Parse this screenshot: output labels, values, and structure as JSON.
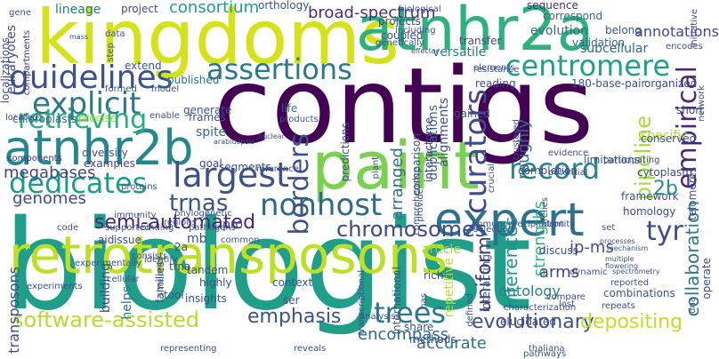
{
  "cloud": {
    "words": [
      {
        "text": "biologist",
        "color": "#1f9e89"
      },
      {
        "text": "contigs",
        "color": "#440154"
      },
      {
        "text": "kingdoms",
        "color": "#d5e21a"
      },
      {
        "text": "atnhr2a",
        "color": "#2db27d"
      },
      {
        "text": "paint",
        "color": "#7ad151"
      },
      {
        "text": "retrotransposons",
        "color": "#bddf26"
      },
      {
        "text": "expert",
        "color": "#2c728e"
      },
      {
        "text": "atnhr2b",
        "color": "#23888e"
      },
      {
        "text": "guidelines",
        "color": "#3b528b"
      },
      {
        "text": "assertions",
        "color": "#2a788e"
      },
      {
        "text": "centromere",
        "color": "#1fa187"
      },
      {
        "text": "explicit",
        "color": "#2a788e"
      },
      {
        "text": "largest",
        "color": "#3b528b"
      },
      {
        "text": "retrieving",
        "color": "#27ad81"
      },
      {
        "text": "curators",
        "color": "#3e4a89"
      },
      {
        "text": "empirical",
        "color": "#482878"
      },
      {
        "text": "record",
        "color": "#25838e"
      },
      {
        "text": "dedicates",
        "color": "#1e9b8a"
      },
      {
        "text": "nonhost",
        "color": "#31688e"
      },
      {
        "text": "borders",
        "color": "#3b528b"
      },
      {
        "text": "software-assisted",
        "color": "#b5de2b"
      },
      {
        "text": "semi-automated",
        "color": "#482777"
      },
      {
        "text": "trees",
        "color": "#2a788e"
      },
      {
        "text": "tyr",
        "color": "#3e4a89"
      },
      {
        "text": "trnas",
        "color": "#3b528b"
      },
      {
        "text": "megabases",
        "color": "#414487"
      },
      {
        "text": "genomes",
        "color": "#3e4a89"
      },
      {
        "text": "chromosomes",
        "color": "#404688"
      },
      {
        "text": "2b",
        "color": "#21918c"
      },
      {
        "text": "emphasis",
        "color": "#3b528b"
      },
      {
        "text": "evolutionary",
        "color": "#3b528b"
      },
      {
        "text": "inferences",
        "color": "#20928c"
      },
      {
        "text": "uniform",
        "color": "#443983"
      },
      {
        "text": "pipeline",
        "color": "#a5db36"
      },
      {
        "text": "collaboration",
        "color": "#2a788e"
      },
      {
        "text": "ip-ms",
        "color": "#3e4a89"
      },
      {
        "text": "roughly",
        "color": "#31688e"
      },
      {
        "text": "arranged",
        "color": "#2c728e"
      },
      {
        "text": "strengths",
        "color": "#2db27d"
      },
      {
        "text": "depositing",
        "color": "#bddf26"
      },
      {
        "text": "encompass",
        "color": "#31688e"
      },
      {
        "text": "accurate",
        "color": "#2c728e"
      },
      {
        "text": "arms",
        "color": "#414487"
      },
      {
        "text": "ontology",
        "color": "#26828e"
      },
      {
        "text": "consortium",
        "color": "#1f9e89"
      },
      {
        "text": "broad-spectrum",
        "color": "#46307e"
      },
      {
        "text": "annotations",
        "color": "#3e4a89"
      },
      {
        "text": "lineage",
        "color": "#2a788e"
      },
      {
        "text": "project",
        "color": "#3e4a89"
      },
      {
        "text": "orthology",
        "color": "#3b528b"
      },
      {
        "text": "sequence",
        "color": "#46307e"
      },
      {
        "text": "correspond",
        "color": "#31688e"
      },
      {
        "text": "eukaryotes",
        "color": "#3e4a89"
      },
      {
        "text": "localizations",
        "color": "#3b528b"
      },
      {
        "text": "compartments",
        "color": "#46307e"
      },
      {
        "text": "chloroplasts",
        "color": "#31688e"
      },
      {
        "text": "published",
        "color": "#2c728e"
      },
      {
        "text": "extend",
        "color": "#3b528b"
      },
      {
        "text": "frames",
        "color": "#3b528b"
      },
      {
        "text": "spite",
        "color": "#31688e"
      },
      {
        "text": "goal",
        "color": "#3e4a89"
      },
      {
        "text": "segments",
        "color": "#3b528b"
      },
      {
        "text": "examples",
        "color": "#414487"
      },
      {
        "text": "diversity",
        "color": "#3b528b"
      },
      {
        "text": "components",
        "color": "#46307e"
      },
      {
        "text": "precise",
        "color": "#8fd744"
      },
      {
        "text": "located",
        "color": "#3e4a89"
      },
      {
        "text": "generate",
        "color": "#3b528b"
      },
      {
        "text": "life",
        "color": "#2c728e"
      },
      {
        "text": "versatile",
        "color": "#2a788e"
      },
      {
        "text": "coupled",
        "color": "#3b528b"
      },
      {
        "text": "projects",
        "color": "#3e4a89"
      },
      {
        "text": "transfer",
        "color": "#3e4a89"
      },
      {
        "text": "evolution",
        "color": "#31688e"
      },
      {
        "text": "validation",
        "color": "#31688e"
      },
      {
        "text": "subcellular",
        "color": "#31688e"
      },
      {
        "text": "belong",
        "color": "#3b528b"
      },
      {
        "text": "reading",
        "color": "#3e4a89"
      },
      {
        "text": "180-base-pair",
        "color": "#3b528b"
      },
      {
        "text": "organized",
        "color": "#3e4a89"
      },
      {
        "text": "gained",
        "color": "#3b528b"
      },
      {
        "text": "alignments",
        "color": "#3b528b"
      },
      {
        "text": "duplications",
        "color": "#31688e"
      },
      {
        "text": "predictions",
        "color": "#3b528b"
      },
      {
        "text": "interactome",
        "color": "#414487"
      },
      {
        "text": "comparison",
        "color": "#3e4a89"
      },
      {
        "text": "specific",
        "color": "#b5de2b"
      },
      {
        "text": "completion",
        "color": "#3e4a89"
      },
      {
        "text": "limitations",
        "color": "#3b528b"
      },
      {
        "text": "cytoplasm",
        "color": "#3e4a89"
      },
      {
        "text": "telomeres",
        "color": "#3e4a89"
      },
      {
        "text": "conserved",
        "color": "#3b528b"
      },
      {
        "text": "short",
        "color": "#3e4a89"
      },
      {
        "text": "framework",
        "color": "#3b528b"
      },
      {
        "text": "homology",
        "color": "#3e4a89"
      },
      {
        "text": "repetitive",
        "color": "#b5de2b"
      },
      {
        "text": "article",
        "color": "#8fd744"
      },
      {
        "text": "rich",
        "color": "#3e4a89"
      },
      {
        "text": "discuss",
        "color": "#3b528b"
      },
      {
        "text": "operate",
        "color": "#3e4a89"
      },
      {
        "text": "transposons",
        "color": "#3e4a89"
      },
      {
        "text": "building",
        "color": "#3e4a89"
      },
      {
        "text": "aid",
        "color": "#3e4a89"
      },
      {
        "text": "issue",
        "color": "#3b528b"
      },
      {
        "text": "pro",
        "color": "#3e4a89"
      },
      {
        "text": "mb",
        "color": "#3b528b"
      },
      {
        "text": "helps",
        "color": "#2c728e"
      },
      {
        "text": "trna",
        "color": "#3e4a89"
      },
      {
        "text": "2a",
        "color": "#3b528b"
      },
      {
        "text": "tool",
        "color": "#3b528b"
      },
      {
        "text": "highly",
        "color": "#3b528b"
      },
      {
        "text": "tandem",
        "color": "#3b528b"
      },
      {
        "text": "insights",
        "color": "#3b528b"
      },
      {
        "text": "context",
        "color": "#3b528b"
      },
      {
        "text": "ser",
        "color": "#3b528b"
      },
      {
        "text": "international",
        "color": "#3b528b"
      },
      {
        "text": "share",
        "color": "#3b528b"
      },
      {
        "text": "methods",
        "color": "#3b528b"
      },
      {
        "text": "analysis",
        "color": "#3b528b"
      },
      {
        "text": "elucidated",
        "color": "#3e4a89"
      },
      {
        "text": "characterization",
        "color": "#3b528b"
      },
      {
        "text": "compare",
        "color": "#3e4a89"
      },
      {
        "text": "lost",
        "color": "#3b528b"
      },
      {
        "text": "combinations",
        "color": "#3b528b"
      },
      {
        "text": "repeats",
        "color": "#3e4a89"
      },
      {
        "text": "reported",
        "color": "#3b528b"
      },
      {
        "text": "dynamic",
        "color": "#3b528b"
      },
      {
        "text": "experimentally",
        "color": "#3b528b"
      },
      {
        "text": "families",
        "color": "#3b528b"
      },
      {
        "text": "code",
        "color": "#3b528b"
      },
      {
        "text": "supported",
        "color": "#3b528b"
      },
      {
        "text": "immunity",
        "color": "#3b528b"
      },
      {
        "text": "regions",
        "color": "#3b528b"
      },
      {
        "text": "phylogenetic",
        "color": "#3b528b"
      },
      {
        "text": "interacting",
        "color": "#3b528b"
      },
      {
        "text": "selection",
        "color": "#3e4a89"
      },
      {
        "text": "immunoprecipitation",
        "color": "#3b528b"
      },
      {
        "text": "identity",
        "color": "#3b528b"
      },
      {
        "text": "relies",
        "color": "#3e4a89"
      },
      {
        "text": "potential",
        "color": "#3b528b"
      },
      {
        "text": "participating",
        "color": "#3e4a89"
      },
      {
        "text": "comprehensive",
        "color": "#3e4a89"
      },
      {
        "text": "clustered",
        "color": "#3b528b"
      },
      {
        "text": "representing",
        "color": "#3b528b"
      },
      {
        "text": "reveals",
        "color": "#3b528b"
      },
      {
        "text": "thaliana",
        "color": "#3b528b"
      },
      {
        "text": "processes",
        "color": "#3b528b"
      },
      {
        "text": "mechanism",
        "color": "#3b528b"
      },
      {
        "text": "flowering",
        "color": "#3b528b"
      },
      {
        "text": "spectrometry",
        "color": "#3b528b"
      },
      {
        "text": "network",
        "color": "#3b528b"
      },
      {
        "text": "encodes",
        "color": "#3b528b"
      },
      {
        "text": "initiative",
        "color": "#3b528b"
      },
      {
        "text": "biological",
        "color": "#3b528b"
      },
      {
        "text": "resistance",
        "color": "#3b528b"
      },
      {
        "text": "elements",
        "color": "#3b528b"
      },
      {
        "text": "mass",
        "color": "#3b528b"
      },
      {
        "text": "data",
        "color": "#3b528b"
      },
      {
        "text": "formed",
        "color": "#3b528b"
      },
      {
        "text": "model",
        "color": "#3b528b"
      },
      {
        "text": "plant",
        "color": "#3b528b"
      },
      {
        "text": "proteins",
        "color": "#3b528b"
      },
      {
        "text": "reference",
        "color": "#3b528b"
      },
      {
        "text": "pathogens",
        "color": "#3b528b"
      },
      {
        "text": "identify",
        "color": "#3b528b"
      },
      {
        "text": "consists",
        "color": "#3b528b"
      },
      {
        "text": "multiple",
        "color": "#3b528b"
      },
      {
        "text": "crucial",
        "color": "#3b528b"
      },
      {
        "text": "enable",
        "color": "#3b528b"
      },
      {
        "text": "products",
        "color": "#3b528b"
      },
      {
        "text": "similarity",
        "color": "#3b528b"
      },
      {
        "text": "including",
        "color": "#3b528b"
      },
      {
        "text": "genetically",
        "color": "#3b528b"
      },
      {
        "text": "effector",
        "color": "#3b528b"
      },
      {
        "text": "nuclear",
        "color": "#3b528b"
      },
      {
        "text": "arabidopsis",
        "color": "#3b528b"
      },
      {
        "text": "step",
        "color": "#3b528b"
      },
      {
        "text": "evidence",
        "color": "#3b528b"
      },
      {
        "text": "has",
        "color": "#3b528b"
      },
      {
        "text": "defined",
        "color": "#3b528b"
      },
      {
        "text": "set",
        "color": "#3b528b"
      },
      {
        "text": "dna",
        "color": "#3b528b"
      },
      {
        "text": "provide",
        "color": "#3b528b"
      },
      {
        "text": "common",
        "color": "#3b528b"
      },
      {
        "text": "binding",
        "color": "#3b528b"
      },
      {
        "text": "transcriptional",
        "color": "#3b528b"
      },
      {
        "text": "experiments",
        "color": "#3b528b"
      },
      {
        "text": "cellular",
        "color": "#3b528b"
      },
      {
        "text": "pathways",
        "color": "#3b528b"
      },
      {
        "text": "gene",
        "color": "#3b528b"
      }
    ]
  }
}
